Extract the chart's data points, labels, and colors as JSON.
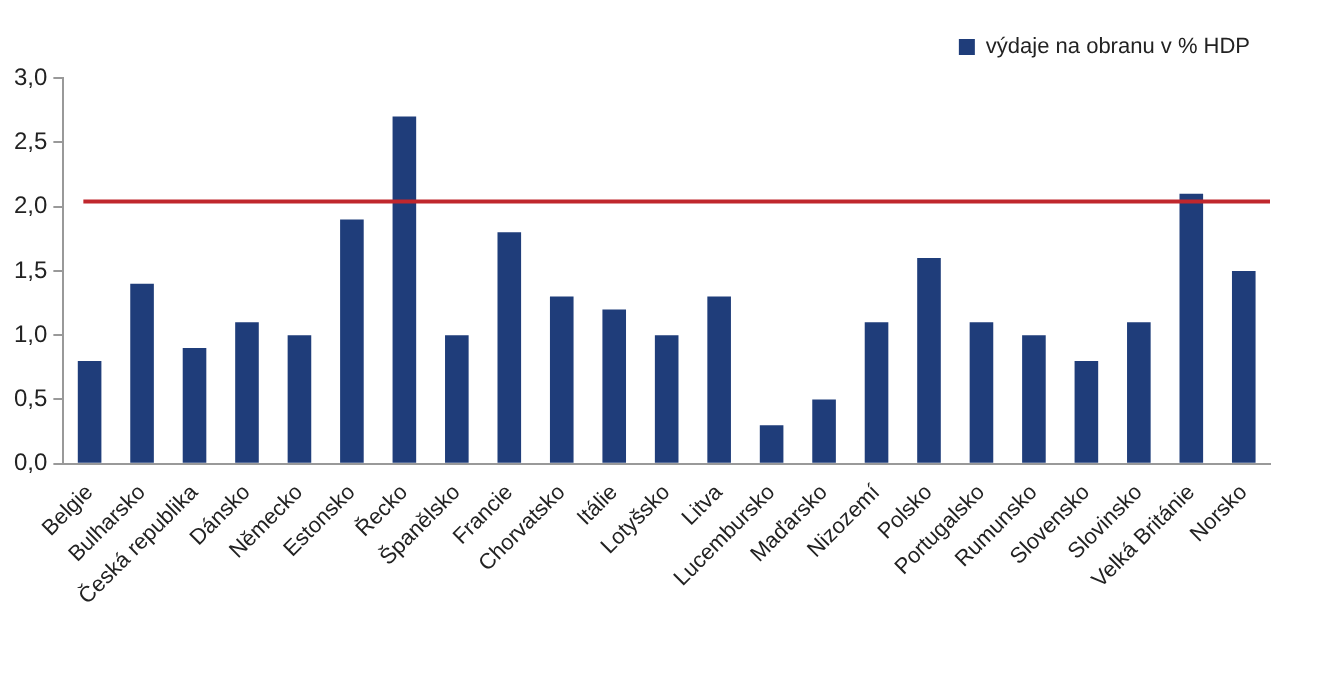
{
  "chart_data": {
    "type": "bar",
    "categories": [
      "Belgie",
      "Bulharsko",
      "Česká republika",
      "Dánsko",
      "Německo",
      "Estonsko",
      "Řecko",
      "Španělsko",
      "Francie",
      "Chorvatsko",
      "Itálie",
      "Lotyšsko",
      "Litva",
      "Lucembursko",
      "Maďarsko",
      "Nizozemí",
      "Polsko",
      "Portugalsko",
      "Rumunsko",
      "Slovensko",
      "Slovinsko",
      "Velká Británie",
      "Norsko"
    ],
    "series": [
      {
        "name": "výdaje na obranu v % HDP",
        "color": "#1f3d7a",
        "values": [
          0.8,
          1.4,
          0.9,
          1.1,
          1.0,
          1.9,
          2.7,
          1.0,
          1.8,
          1.3,
          1.2,
          1.0,
          1.3,
          0.3,
          0.5,
          1.1,
          1.6,
          1.1,
          1.0,
          0.8,
          1.1,
          2.1,
          1.5
        ]
      }
    ],
    "ylim": [
      0,
      3
    ],
    "yticks": [
      {
        "value": 0,
        "label": "0,0"
      },
      {
        "value": 0.5,
        "label": "0,5"
      },
      {
        "value": 1,
        "label": "1,0"
      },
      {
        "value": 1.5,
        "label": "1,5"
      },
      {
        "value": 2,
        "label": "2,0"
      },
      {
        "value": 2.5,
        "label": "2,5"
      },
      {
        "value": 3,
        "label": "3,0"
      }
    ],
    "ref_lines": [
      {
        "axis": "y",
        "value": 2.04,
        "color": "#c0272d"
      }
    ],
    "grid": false,
    "legend": "top right"
  }
}
